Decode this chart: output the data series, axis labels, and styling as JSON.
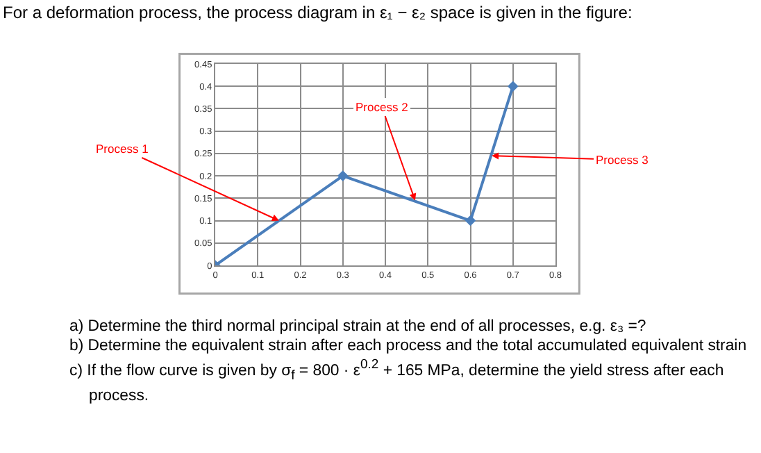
{
  "chart_data": {
    "type": "line",
    "title": "For a deformation process, the process diagram in ε₁ − ε₂ space is given in the figure:",
    "x": [
      0,
      0.3,
      0.6,
      0.7
    ],
    "series": [
      {
        "color": "#4a7ebb",
        "values": [
          0,
          0.2,
          0.1,
          0.4
        ]
      }
    ],
    "xlim": [
      0,
      0.8
    ],
    "xticks": [
      0,
      0.1,
      0.2,
      0.3,
      0.4,
      0.5,
      0.6,
      0.7,
      0.8
    ],
    "ylim": [
      0,
      0.45
    ],
    "yticks": [
      0,
      0.05,
      0.1,
      0.15,
      0.2,
      0.25,
      0.3,
      0.35,
      0.4,
      0.45
    ],
    "grid": true,
    "marker": "diamond",
    "legend": false,
    "annotations": [
      {
        "text": "Process 1",
        "x": 0.15,
        "y": 0.1
      },
      {
        "text": "Process 2",
        "x": 0.47,
        "y": 0.145
      },
      {
        "text": "Process 3",
        "x": 0.65,
        "y": 0.245
      },
      "a) Determine the third normal principal strain at the end of all processes, e.g. ε₃ =?",
      "b) Determine the equivalent strain after each process and the total accumulated equivalent strain",
      "c) If the flow curve is given by σ$_{f}$ = 800 · ε$^{0.2}$ + 165 MPa, determine the yield stress after each process."
    ]
  }
}
